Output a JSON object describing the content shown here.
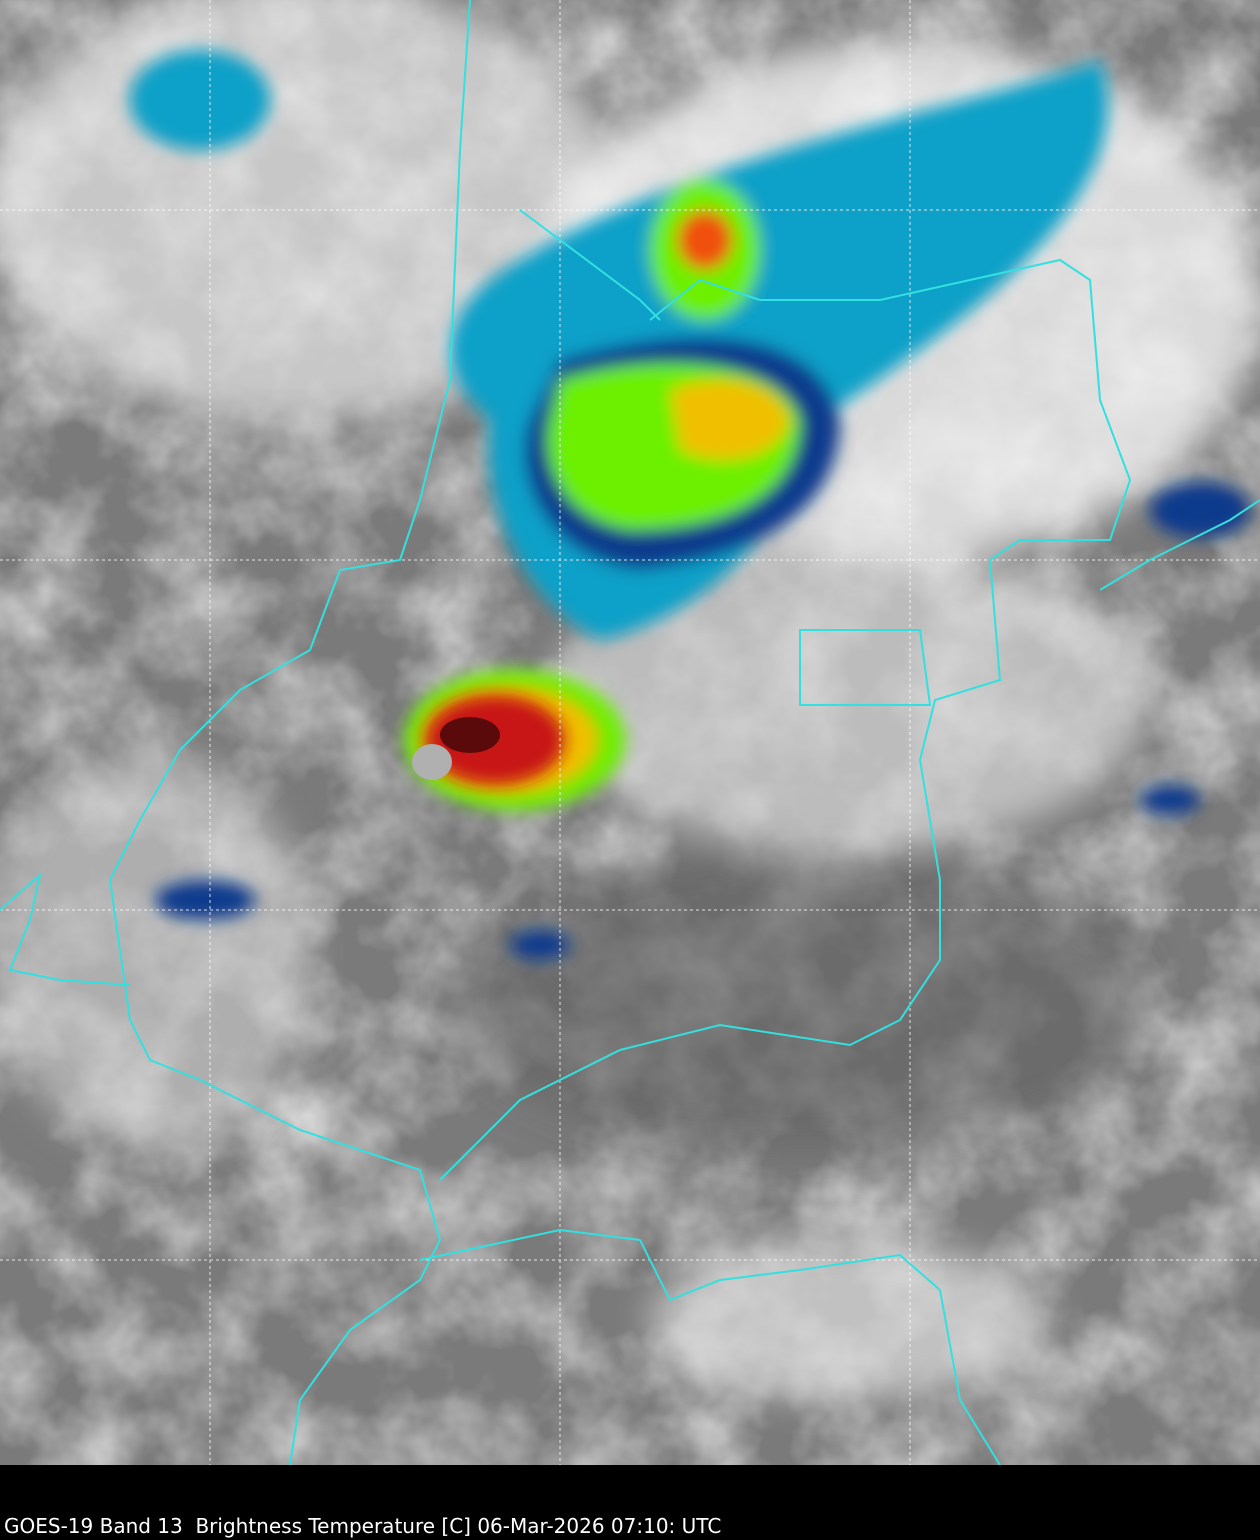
{
  "caption": "GOES-19 Band 13  Brightness Temperature [C] 06-Mar-2026 07:10: UTC"
}
